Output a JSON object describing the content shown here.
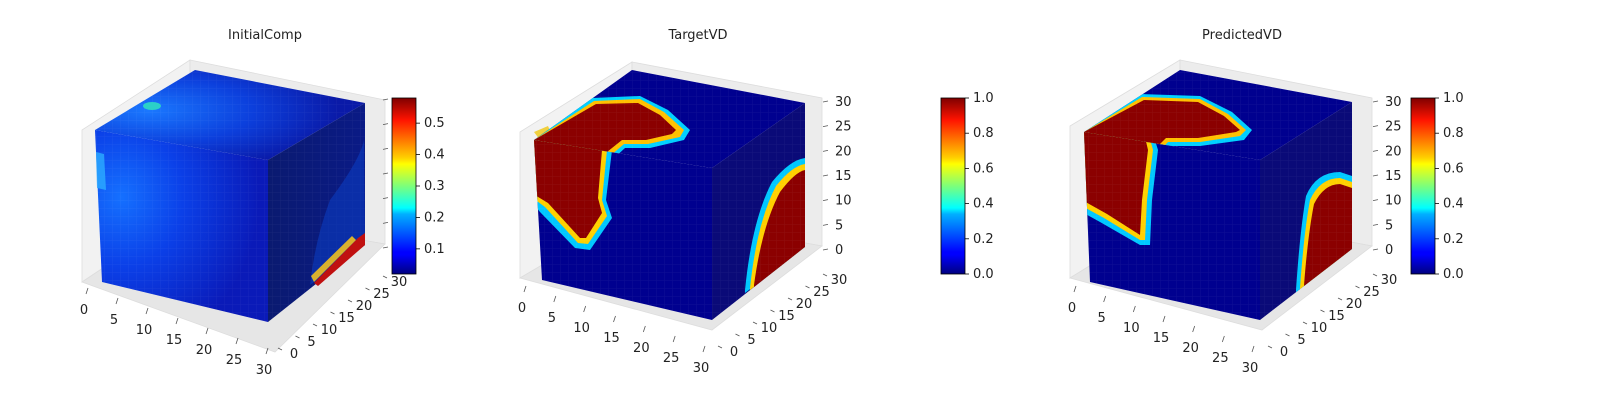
{
  "chart_data": [
    {
      "type": "heatmap",
      "title": "InitialComp",
      "x_ticks": [
        "0",
        "5",
        "10",
        "15",
        "20",
        "25",
        "30"
      ],
      "y_ticks": [
        "0",
        "5",
        "10",
        "15",
        "20",
        "25",
        "30"
      ],
      "z_ticks": [],
      "colorbar": {
        "colormap": "jet",
        "range": [
          0.02,
          0.58
        ],
        "ticks": [
          "0.1",
          "0.2",
          "0.3",
          "0.4",
          "0.5"
        ]
      }
    },
    {
      "type": "heatmap",
      "title": "TargetVD",
      "x_ticks": [
        "0",
        "5",
        "10",
        "15",
        "20",
        "25",
        "30"
      ],
      "y_ticks": [
        "0",
        "5",
        "10",
        "15",
        "20",
        "25",
        "30"
      ],
      "z_ticks": [
        "0",
        "5",
        "10",
        "15",
        "20",
        "25",
        "30"
      ],
      "colorbar": {
        "colormap": "jet",
        "range": [
          0.0,
          1.0
        ],
        "ticks": [
          "0.0",
          "0.2",
          "0.4",
          "0.6",
          "0.8",
          "1.0"
        ]
      }
    },
    {
      "type": "heatmap",
      "title": "PredictedVD",
      "x_ticks": [
        "0",
        "5",
        "10",
        "15",
        "20",
        "25",
        "30"
      ],
      "y_ticks": [
        "0",
        "5",
        "10",
        "15",
        "20",
        "25",
        "30"
      ],
      "z_ticks": [
        "0",
        "5",
        "10",
        "15",
        "20",
        "25",
        "30"
      ],
      "colorbar": {
        "colormap": "jet",
        "range": [
          0.0,
          1.0
        ],
        "ticks": [
          "0.0",
          "0.2",
          "0.4",
          "0.6",
          "0.8",
          "1.0"
        ]
      }
    }
  ]
}
